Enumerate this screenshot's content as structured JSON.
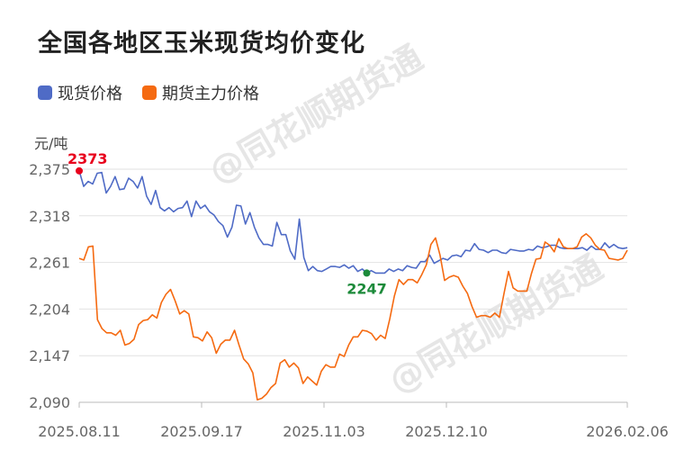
{
  "title": "全国各地区玉米现货均价变化",
  "unit_label": "元/吨",
  "watermark": "@同花顺期货通",
  "colors": {
    "spot": "#4f6bc6",
    "futures": "#f56a11",
    "max_point": "#e8001c",
    "min_point": "#1c8a3a",
    "grid": "#e2e2e2",
    "axis_text": "#666666"
  },
  "chart_data": {
    "type": "line",
    "title": "全国各地区玉米现货均价变化",
    "ylabel": "元/吨",
    "ylim": [
      2090,
      2375
    ],
    "yticks": [
      2090,
      2147,
      2204,
      2261,
      2318,
      2375
    ],
    "ytick_labels": [
      "2,090",
      "2,147",
      "2,204",
      "2,261",
      "2,318",
      "2,375"
    ],
    "xticks": [
      "2025.08.11",
      "2025.09.17",
      "2025.11.03",
      "2025.12.10",
      "2026.02.06"
    ],
    "legend_position": "top-left",
    "grid": true,
    "series": [
      {
        "name": "现货价格",
        "color": "#4f6bc6",
        "values": [
          2373,
          2354,
          2360,
          2357,
          2370,
          2371,
          2346,
          2354,
          2366,
          2350,
          2351,
          2364,
          2360,
          2352,
          2366,
          2342,
          2332,
          2349,
          2328,
          2324,
          2328,
          2323,
          2327,
          2328,
          2336,
          2317,
          2336,
          2327,
          2331,
          2323,
          2319,
          2311,
          2306,
          2292,
          2304,
          2331,
          2330,
          2308,
          2322,
          2304,
          2291,
          2283,
          2283,
          2281,
          2310,
          2295,
          2295,
          2275,
          2265,
          2314,
          2267,
          2251,
          2256,
          2251,
          2250,
          2253,
          2256,
          2256,
          2255,
          2258,
          2254,
          2257,
          2250,
          2253,
          2248,
          2251,
          2248,
          2248,
          2248,
          2253,
          2250,
          2253,
          2251,
          2257,
          2255,
          2254,
          2262,
          2262,
          2270,
          2260,
          2263,
          2266,
          2264,
          2269,
          2270,
          2268,
          2276,
          2275,
          2284,
          2277,
          2276,
          2273,
          2276,
          2276,
          2273,
          2272,
          2277,
          2276,
          2275,
          2275,
          2277,
          2276,
          2281,
          2279,
          2280,
          2282,
          2282,
          2279,
          2278,
          2278,
          2278,
          2278,
          2279,
          2276,
          2281,
          2277,
          2277,
          2285,
          2279,
          2283,
          2279,
          2278,
          2279
        ],
        "max_label": "2373",
        "min_label": "2247"
      },
      {
        "name": "期货主力价格",
        "color": "#f56a11",
        "values": [
          2266,
          2264,
          2280,
          2281,
          2191,
          2180,
          2175,
          2175,
          2172,
          2178,
          2160,
          2162,
          2167,
          2185,
          2190,
          2191,
          2197,
          2193,
          2212,
          2222,
          2228,
          2214,
          2198,
          2202,
          2198,
          2170,
          2169,
          2165,
          2176,
          2169,
          2150,
          2161,
          2166,
          2166,
          2178,
          2160,
          2143,
          2137,
          2126,
          2093,
          2095,
          2100,
          2108,
          2113,
          2138,
          2142,
          2133,
          2138,
          2132,
          2113,
          2121,
          2116,
          2111,
          2128,
          2136,
          2133,
          2133,
          2149,
          2146,
          2160,
          2170,
          2170,
          2178,
          2177,
          2174,
          2166,
          2172,
          2168,
          2192,
          2220,
          2240,
          2234,
          2240,
          2240,
          2236,
          2246,
          2258,
          2283,
          2291,
          2270,
          2239,
          2243,
          2245,
          2243,
          2232,
          2223,
          2207,
          2194,
          2196,
          2196,
          2194,
          2199,
          2194,
          2223,
          2250,
          2230,
          2226,
          2226,
          2226,
          2247,
          2265,
          2266,
          2286,
          2282,
          2274,
          2290,
          2280,
          2278,
          2278,
          2280,
          2292,
          2296,
          2291,
          2282,
          2277,
          2276,
          2266,
          2265,
          2264,
          2266,
          2276
        ]
      }
    ]
  }
}
